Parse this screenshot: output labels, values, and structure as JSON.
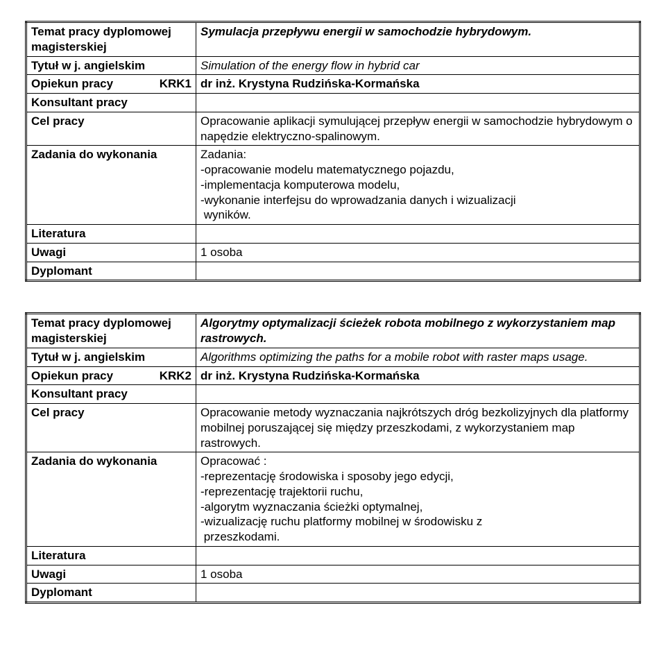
{
  "tables": [
    {
      "rows": [
        {
          "label_html": "<span class='b'>Temat pracy dyplomowej magisterskiej</span>",
          "value_html": "<span class='bi'>Symulacja przepływu energii w samochodzie hybrydowym.</span>"
        },
        {
          "label_html": "<span class='b'>Tytuł w j. angielskim</span>",
          "value_html": "<span class='i'>Simulation of the energy flow in hybrid car</span>"
        },
        {
          "label_html": "<span class='sub-split'><span class='b'>Opiekun pracy</span><span class='b'>KRK1</span></span>",
          "value_html": "<span class='b'>dr inż. Krystyna Rudzińska-Kormańska</span>"
        },
        {
          "label_html": "<span class='b'>Konsultant pracy</span>",
          "value_html": ""
        },
        {
          "label_html": "<span class='b'>Cel pracy</span>",
          "value_html": "Opracowanie aplikacji symulującej przepływ energii w samochodzie hybrydowym o napędzie elektryczno-spalinowym."
        },
        {
          "label_html": "<span class='b'>Zadania do wykonania</span>",
          "value_html": "Zadania:<br>-opracowanie modelu matematycznego pojazdu,<br>-implementacja komputerowa modelu,<br>-wykonanie interfejsu do wprowadzania danych i wizualizacji<br>&nbsp;wyników."
        },
        {
          "label_html": "<span class='b'>Literatura</span>",
          "value_html": ""
        },
        {
          "label_html": "<span class='b'>Uwagi</span>",
          "value_html": "1 osoba"
        },
        {
          "label_html": "<span class='b'>Dyplomant</span>",
          "value_html": ""
        }
      ]
    },
    {
      "rows": [
        {
          "label_html": "<span class='b'>Temat pracy dyplomowej magisterskiej</span>",
          "value_html": "<span class='bi'>Algorytmy optymalizacji ścieżek robota mobilnego z wykorzystaniem map rastrowych.</span>"
        },
        {
          "label_html": "<span class='b'>Tytuł w j. angielskim</span>",
          "value_html": "<span class='i'>Algorithms optimizing the paths for a mobile robot with raster maps usage.</span>"
        },
        {
          "label_html": "<span class='sub-split'><span class='b'>Opiekun pracy</span><span class='b'>KRK2</span></span>",
          "value_html": "<span class='b'>dr inż. Krystyna Rudzińska-Kormańska</span>"
        },
        {
          "label_html": "<span class='b'>Konsultant pracy</span>",
          "value_html": ""
        },
        {
          "label_html": "<span class='b'>Cel pracy</span>",
          "value_html": "Opracowanie metody wyznaczania najkrótszych dróg bezkolizyjnych dla platformy mobilnej poruszającej się między przeszkodami, z wykorzystaniem map rastrowych."
        },
        {
          "label_html": "<span class='b'>Zadania do wykonania</span>",
          "value_html": "Opracować :<br>-reprezentację środowiska i sposoby jego edycji,<br>-reprezentację trajektorii ruchu,<br>-algorytm wyznaczania ścieżki optymalnej,<br>-wizualizację ruchu platformy mobilnej w środowisku z<br>&nbsp;przeszkodami."
        },
        {
          "label_html": "<span class='b'>Literatura</span>",
          "value_html": ""
        },
        {
          "label_html": "<span class='b'>Uwagi</span>",
          "value_html": "1 osoba"
        },
        {
          "label_html": "<span class='b'>Dyplomant</span>",
          "value_html": ""
        }
      ]
    }
  ]
}
